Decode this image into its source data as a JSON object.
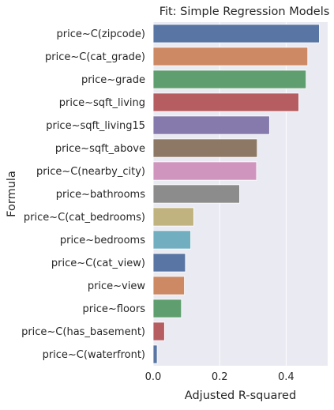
{
  "chart_data": {
    "type": "bar",
    "orientation": "horizontal",
    "title": "Fit: Simple Regression Models",
    "xlabel": "Adjusted R-squared",
    "ylabel": "Formula",
    "xlim": [
      0.0,
      0.525
    ],
    "xticks": [
      "0.0",
      "0.2",
      "0.4"
    ],
    "grid": true,
    "legend": "none",
    "categories": [
      "price~C(zipcode)",
      "price~C(cat_grade)",
      "price~grade",
      "price~sqft_living",
      "price~sqft_living15",
      "price~sqft_above",
      "price~C(nearby_city)",
      "price~bathrooms",
      "price~C(cat_bedrooms)",
      "price~bedrooms",
      "price~C(cat_view)",
      "price~view",
      "price~floors",
      "price~C(has_basement)",
      "price~C(waterfront)"
    ],
    "values": [
      0.5,
      0.465,
      0.46,
      0.438,
      0.35,
      0.313,
      0.311,
      0.26,
      0.122,
      0.113,
      0.097,
      0.094,
      0.085,
      0.034,
      0.012
    ],
    "colors": [
      "#5975a4",
      "#cc8963",
      "#5f9e6e",
      "#b55d60",
      "#857aab",
      "#8d7866",
      "#d095bf",
      "#8c8c8c",
      "#c1b37f",
      "#71aec0",
      "#5975a4",
      "#cc8963",
      "#5f9e6e",
      "#b55d60",
      "#5975a4"
    ],
    "background": "#eaeaf2",
    "gridcolor": "#ffffff"
  }
}
